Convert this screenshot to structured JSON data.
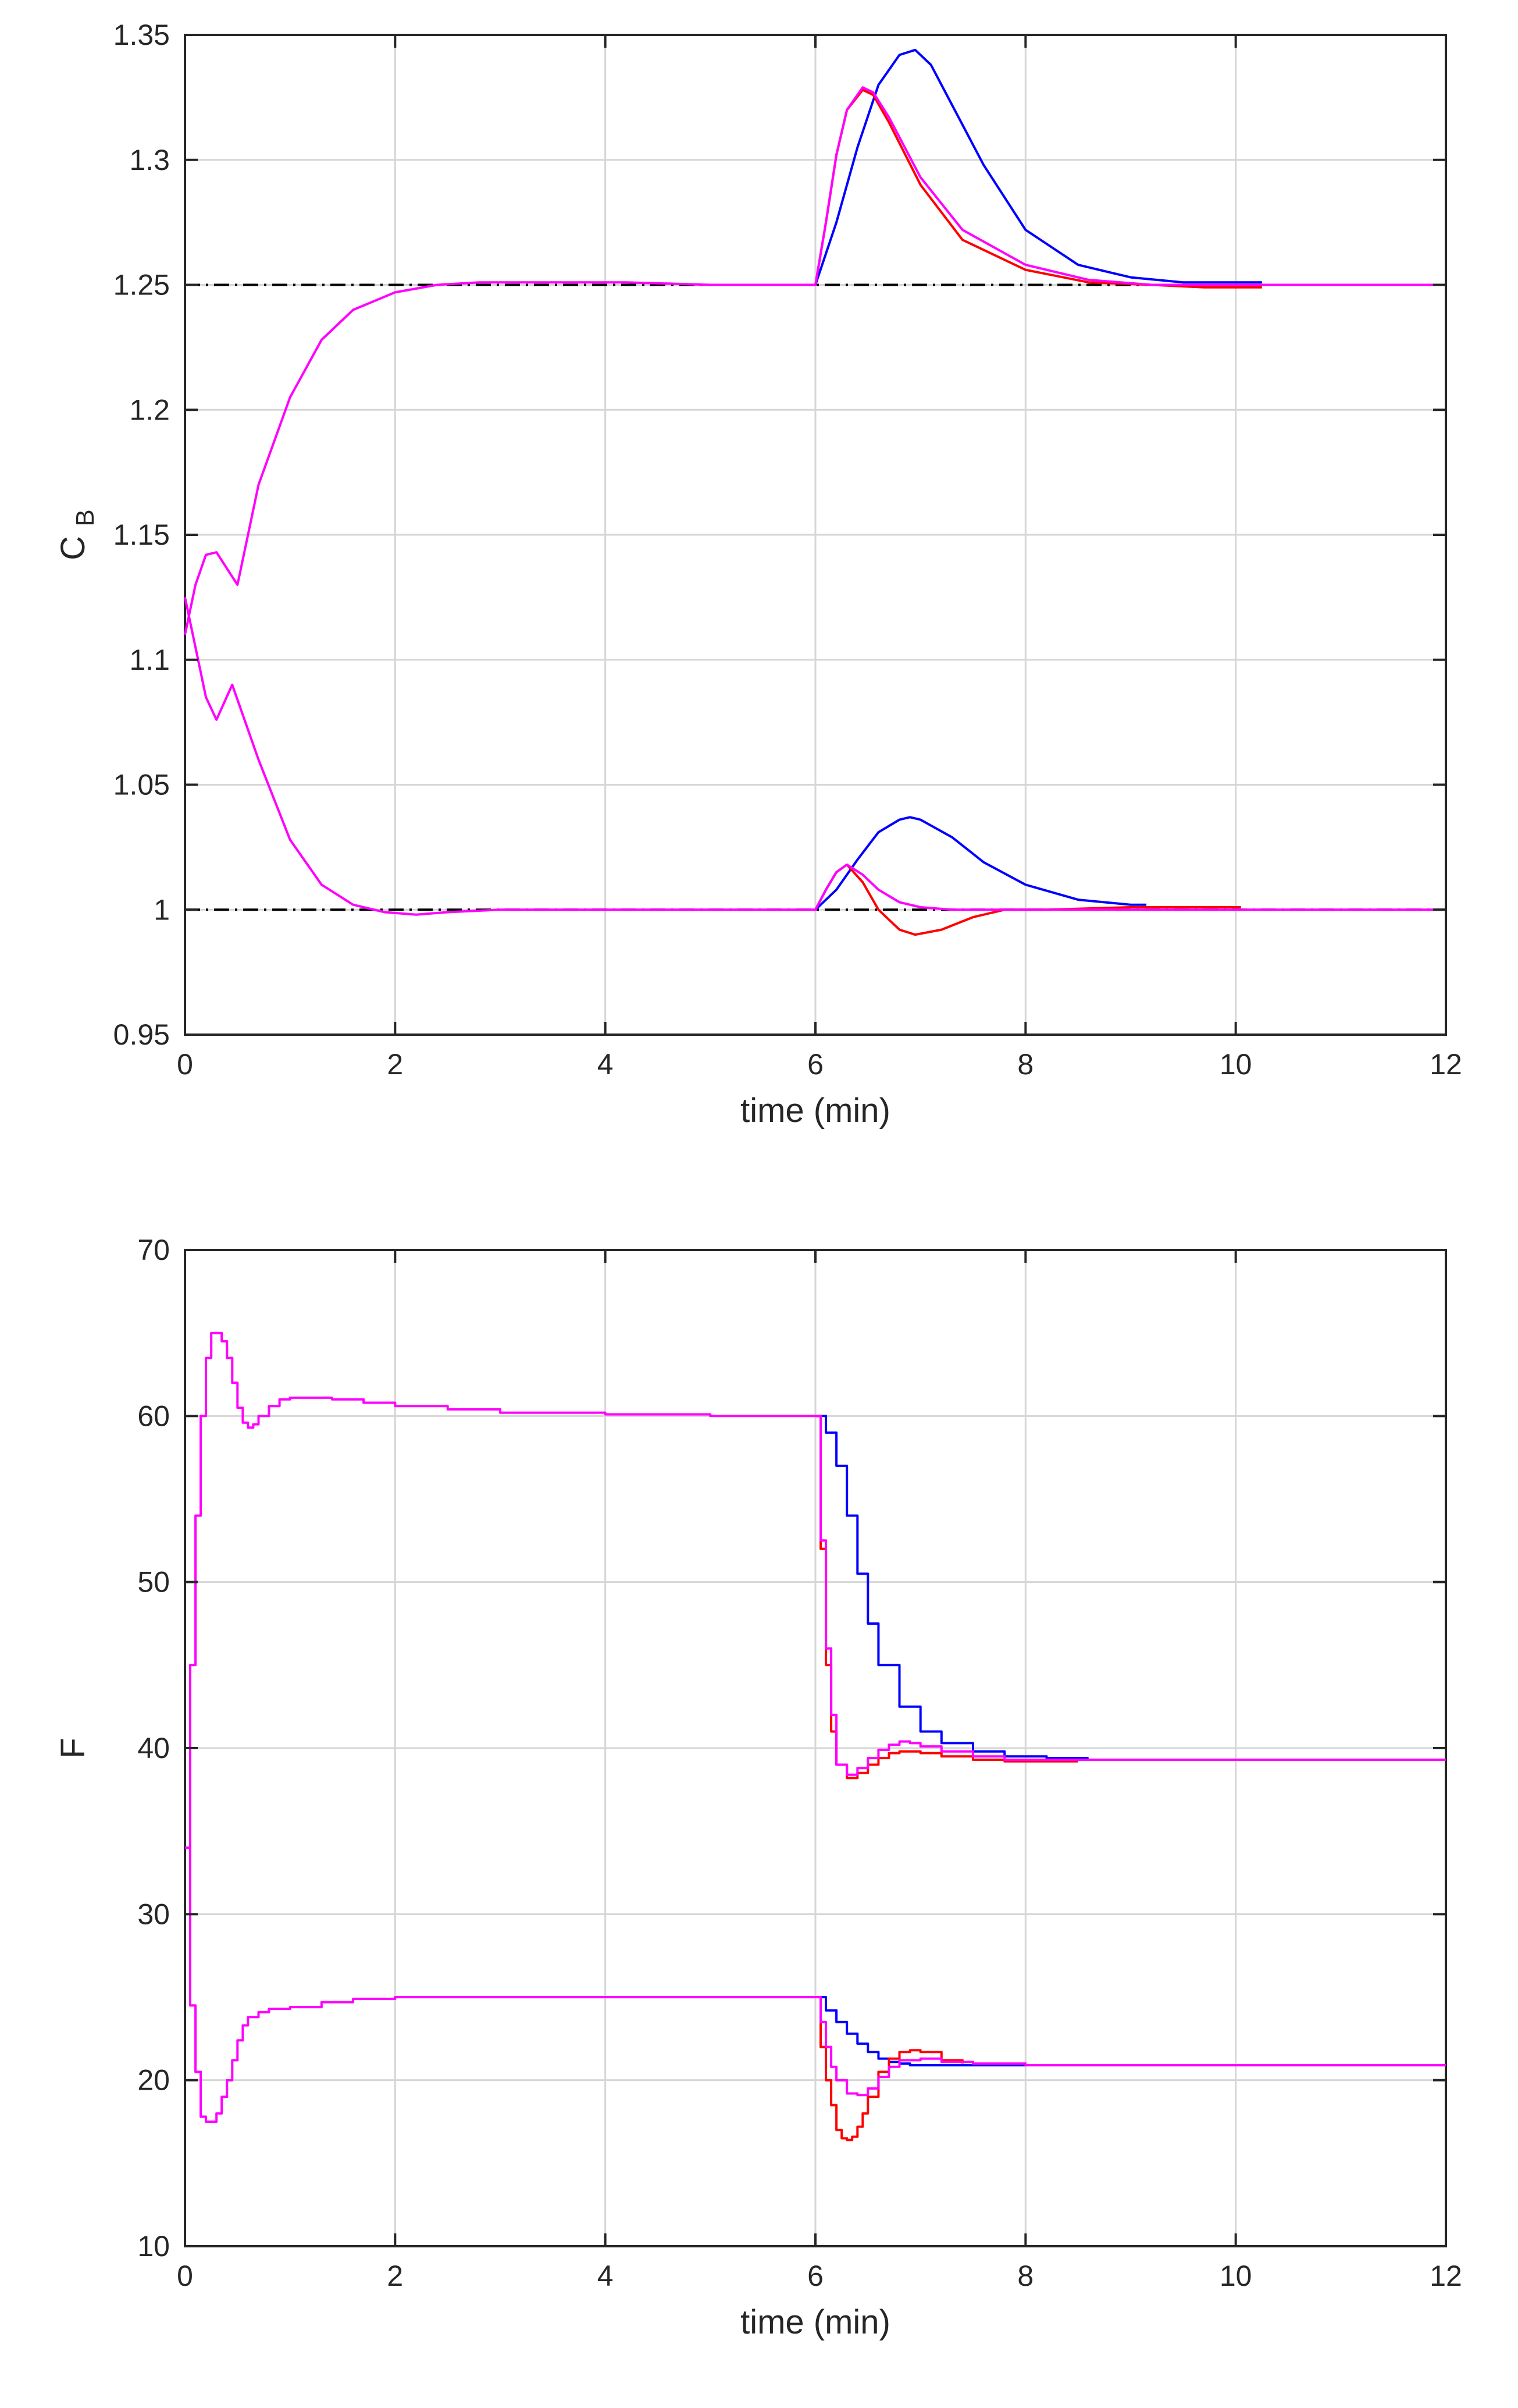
{
  "chart_data": [
    {
      "type": "line",
      "xlabel": "time (min)",
      "ylabel_main": "C",
      "ylabel_sub": "B",
      "xlim": [
        0,
        12
      ],
      "ylim": [
        0.95,
        1.35
      ],
      "xticks": [
        0,
        2,
        4,
        6,
        8,
        10,
        12
      ],
      "xtick_labels": [
        "0",
        "2",
        "4",
        "6",
        "8",
        "10",
        "12"
      ],
      "yticks": [
        0.95,
        1,
        1.05,
        1.1,
        1.15,
        1.2,
        1.25,
        1.3,
        1.35
      ],
      "ytick_labels": [
        "0.95",
        "1",
        "1.05",
        "1.1",
        "1.15",
        "1.2",
        "1.25",
        "1.3",
        "1.35"
      ],
      "grid": true,
      "reference_lines": [
        1.25,
        1.0
      ],
      "series": [
        {
          "name": "high-setpoint-blue",
          "color": "#0000ff",
          "step": false,
          "x": [
            6.0,
            6.2,
            6.4,
            6.6,
            6.8,
            6.95,
            7.1,
            7.3,
            7.6,
            8.0,
            8.5,
            9.0,
            9.5,
            10.0,
            10.25
          ],
          "y": [
            1.25,
            1.275,
            1.305,
            1.33,
            1.342,
            1.344,
            1.338,
            1.322,
            1.298,
            1.272,
            1.258,
            1.253,
            1.251,
            1.251,
            1.251
          ]
        },
        {
          "name": "high-setpoint-red",
          "color": "#ff0000",
          "step": false,
          "x": [
            6.0,
            6.1,
            6.2,
            6.3,
            6.45,
            6.55,
            6.7,
            7.0,
            7.4,
            8.0,
            8.6,
            9.2,
            9.7,
            10.25
          ],
          "y": [
            1.25,
            1.275,
            1.302,
            1.32,
            1.328,
            1.326,
            1.315,
            1.29,
            1.268,
            1.256,
            1.251,
            1.25,
            1.249,
            1.249
          ]
        },
        {
          "name": "high-setpoint-magenta",
          "color": "#ff00ff",
          "step": false,
          "x": [
            0.0,
            0.1,
            0.2,
            0.3,
            0.5,
            0.7,
            1.0,
            1.3,
            1.6,
            2.0,
            2.4,
            2.8,
            3.5,
            4.2,
            5.0,
            6.0,
            6.1,
            6.2,
            6.3,
            6.45,
            6.55,
            6.7,
            7.0,
            7.4,
            8.0,
            8.6,
            9.2,
            10.0,
            11.0,
            12.0
          ],
          "y": [
            1.11,
            1.13,
            1.142,
            1.143,
            1.13,
            1.17,
            1.205,
            1.228,
            1.24,
            1.247,
            1.25,
            1.251,
            1.251,
            1.251,
            1.25,
            1.25,
            1.275,
            1.302,
            1.32,
            1.329,
            1.327,
            1.317,
            1.293,
            1.272,
            1.258,
            1.252,
            1.25,
            1.25,
            1.25,
            1.25
          ]
        },
        {
          "name": "low-setpoint-blue",
          "color": "#0000ff",
          "step": false,
          "x": [
            6.0,
            6.2,
            6.4,
            6.6,
            6.8,
            6.9,
            7.0,
            7.3,
            7.6,
            8.0,
            8.5,
            9.0,
            9.15
          ],
          "y": [
            1.0,
            1.008,
            1.02,
            1.031,
            1.036,
            1.037,
            1.036,
            1.029,
            1.019,
            1.01,
            1.004,
            1.002,
            1.002
          ]
        },
        {
          "name": "low-setpoint-red",
          "color": "#ff0000",
          "step": false,
          "x": [
            6.0,
            6.1,
            6.2,
            6.3,
            6.45,
            6.6,
            6.8,
            6.95,
            7.2,
            7.5,
            7.8,
            8.2,
            9.0,
            10.05
          ],
          "y": [
            1.0,
            1.008,
            1.015,
            1.018,
            1.011,
            1.0,
            0.992,
            0.99,
            0.992,
            0.997,
            1.0,
            1.0,
            1.001,
            1.001
          ]
        },
        {
          "name": "low-setpoint-magenta",
          "color": "#ff00ff",
          "step": false,
          "x": [
            0.0,
            0.1,
            0.2,
            0.3,
            0.45,
            0.7,
            1.0,
            1.3,
            1.6,
            1.9,
            2.2,
            2.5,
            3.0,
            4.0,
            5.0,
            6.0,
            6.1,
            6.2,
            6.3,
            6.45,
            6.6,
            6.8,
            7.0,
            7.3,
            7.6,
            8.0,
            9.0,
            12.0
          ],
          "y": [
            1.125,
            1.105,
            1.085,
            1.076,
            1.09,
            1.06,
            1.028,
            1.01,
            1.002,
            0.999,
            0.998,
            0.999,
            1.0,
            1.0,
            1.0,
            1.0,
            1.008,
            1.015,
            1.018,
            1.014,
            1.008,
            1.003,
            1.001,
            1.0,
            1.0,
            1.0,
            1.0,
            1.0
          ]
        }
      ]
    },
    {
      "type": "line",
      "xlabel": "time (min)",
      "ylabel": "F",
      "xlim": [
        0,
        12
      ],
      "ylim": [
        10,
        70
      ],
      "xticks": [
        0,
        2,
        4,
        6,
        8,
        10,
        12
      ],
      "xtick_labels": [
        "0",
        "2",
        "4",
        "6",
        "8",
        "10",
        "12"
      ],
      "yticks": [
        10,
        20,
        30,
        40,
        50,
        60,
        70
      ],
      "ytick_labels": [
        "10",
        "20",
        "30",
        "40",
        "50",
        "60",
        "70"
      ],
      "grid": true,
      "series": [
        {
          "name": "high-flow-blue",
          "color": "#0000ff",
          "step": true,
          "x": [
            6.0,
            6.1,
            6.2,
            6.3,
            6.4,
            6.5,
            6.6,
            6.8,
            7.0,
            7.2,
            7.5,
            7.8,
            8.2,
            8.6
          ],
          "y": [
            60,
            59,
            57,
            54,
            50.5,
            47.5,
            45,
            42.5,
            41,
            40.3,
            39.8,
            39.5,
            39.4,
            39.4
          ]
        },
        {
          "name": "high-flow-red",
          "color": "#ff0000",
          "step": true,
          "x": [
            6.0,
            6.05,
            6.1,
            6.15,
            6.2,
            6.3,
            6.4,
            6.5,
            6.6,
            6.7,
            6.8,
            6.9,
            7.0,
            7.2,
            7.5,
            7.8,
            8.2,
            8.5
          ],
          "y": [
            60,
            52,
            45,
            41,
            39,
            38.2,
            38.5,
            39,
            39.4,
            39.7,
            39.8,
            39.8,
            39.7,
            39.5,
            39.3,
            39.2,
            39.2,
            39.2
          ]
        },
        {
          "name": "high-flow-magenta",
          "color": "#ff00ff",
          "step": true,
          "x": [
            0.0,
            0.05,
            0.1,
            0.15,
            0.2,
            0.25,
            0.3,
            0.35,
            0.4,
            0.45,
            0.5,
            0.55,
            0.6,
            0.65,
            0.7,
            0.8,
            0.9,
            1.0,
            1.2,
            1.4,
            1.7,
            2.0,
            2.5,
            3.0,
            4.0,
            5.0,
            6.0,
            6.05,
            6.1,
            6.15,
            6.2,
            6.3,
            6.4,
            6.5,
            6.6,
            6.7,
            6.8,
            6.9,
            7.0,
            7.2,
            7.5,
            7.8,
            8.2,
            8.8,
            12.0
          ],
          "y": [
            34,
            45,
            54,
            60,
            63.5,
            65,
            65,
            64.5,
            63.5,
            62,
            60.5,
            59.6,
            59.3,
            59.5,
            60,
            60.6,
            61,
            61.1,
            61.1,
            61,
            60.8,
            60.6,
            60.4,
            60.2,
            60.1,
            60,
            60,
            52.5,
            46,
            42,
            39,
            38.4,
            38.8,
            39.4,
            39.9,
            40.2,
            40.4,
            40.3,
            40.1,
            39.8,
            39.5,
            39.3,
            39.3,
            39.3,
            39.3
          ]
        },
        {
          "name": "low-flow-blue",
          "color": "#0000ff",
          "step": true,
          "x": [
            6.0,
            6.1,
            6.2,
            6.3,
            6.4,
            6.5,
            6.6,
            6.7,
            6.8,
            6.9,
            7.0,
            7.2,
            7.4,
            7.6,
            7.8,
            8.1
          ],
          "y": [
            25,
            24.2,
            23.5,
            22.8,
            22.2,
            21.7,
            21.3,
            21.1,
            21.0,
            20.9,
            20.9,
            20.9,
            20.9,
            20.9,
            20.9,
            20.9
          ]
        },
        {
          "name": "low-flow-red",
          "color": "#ff0000",
          "step": true,
          "x": [
            6.0,
            6.05,
            6.1,
            6.15,
            6.2,
            6.25,
            6.3,
            6.35,
            6.4,
            6.45,
            6.5,
            6.6,
            6.7,
            6.8,
            6.9,
            7.0,
            7.2,
            7.4
          ],
          "y": [
            25,
            22,
            20,
            18.5,
            17,
            16.5,
            16.4,
            16.6,
            17.2,
            18,
            19,
            20.5,
            21.3,
            21.7,
            21.8,
            21.7,
            21.2,
            21
          ]
        },
        {
          "name": "low-flow-magenta",
          "color": "#ff00ff",
          "step": true,
          "x": [
            0.0,
            0.05,
            0.1,
            0.15,
            0.2,
            0.25,
            0.3,
            0.35,
            0.4,
            0.45,
            0.5,
            0.55,
            0.6,
            0.7,
            0.8,
            1.0,
            1.3,
            1.6,
            2.0,
            3.0,
            4.0,
            5.0,
            6.0,
            6.05,
            6.1,
            6.15,
            6.2,
            6.3,
            6.4,
            6.5,
            6.6,
            6.7,
            6.8,
            7.0,
            7.2,
            7.5,
            8.0,
            9.0,
            12.0
          ],
          "y": [
            34,
            24.5,
            20.5,
            17.8,
            17.5,
            17.5,
            18,
            19,
            20,
            21.2,
            22.4,
            23.3,
            23.8,
            24.1,
            24.3,
            24.4,
            24.7,
            24.9,
            25,
            25,
            25,
            25,
            25,
            23.5,
            22,
            20.8,
            20,
            19.2,
            19.1,
            19.5,
            20.2,
            20.8,
            21.2,
            21.3,
            21.1,
            21,
            20.9,
            20.9,
            20.9
          ]
        }
      ]
    }
  ]
}
